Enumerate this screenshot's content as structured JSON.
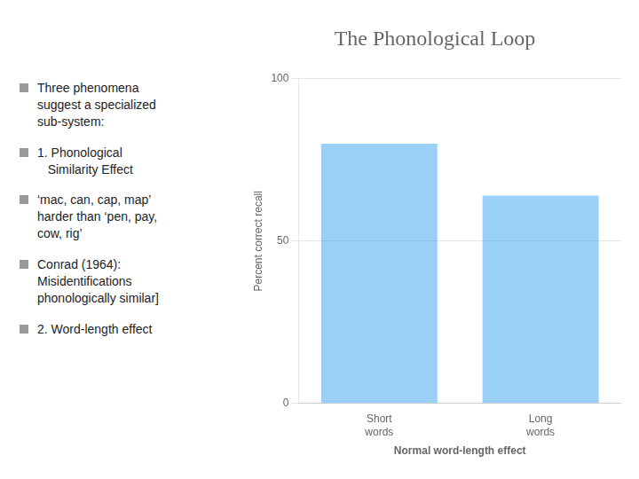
{
  "chart_data": {
    "type": "bar",
    "title": "The Phonological Loop",
    "categories": [
      "Short\nwords",
      "Long\nwords"
    ],
    "values": [
      80,
      64
    ],
    "ylabel": "Percent correct recall",
    "xlabel": "Normal word-length effect",
    "ylim": [
      0,
      100
    ],
    "yticks": [
      0,
      50,
      100
    ],
    "grid": true,
    "annotations": [
      "Three phenomena\nsuggest a specialized\nsub-system:",
      "1. Phonological\n   Similarity Effect",
      "‘mac, can, cap, map’\nharder than ‘pen, pay,\ncow, rig’",
      "Conrad (1964):\nMisidentifications\nphonologically similar]",
      "2. Word-length effect"
    ]
  }
}
